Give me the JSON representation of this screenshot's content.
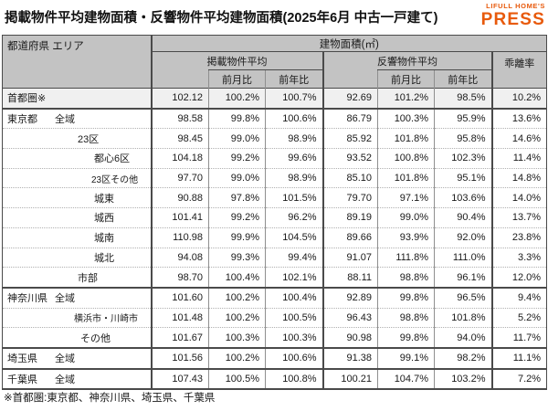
{
  "title": "掲載物件平均建物面積・反響物件平均建物面積(2025年6月 中古一戸建て)",
  "logo": {
    "line1": "LIFULL HOME'S",
    "line2": "PRESS",
    "color": "#E85A0C"
  },
  "footnote": "※首都圏:東京都、神奈川県、埼玉県、千葉県",
  "chart_data": {
    "type": "table",
    "title": "掲載物件平均建物面積・反響物件平均建物面積(2025年6月 中古一戸建て)",
    "headers": {
      "region": "都道府県 エリア",
      "unit_group": "建物面積(㎡)",
      "listed_group": "掲載物件平均",
      "inquiry_group": "反響物件平均",
      "divergence": "乖離率",
      "mom": "前月比",
      "yoy": "前年比"
    },
    "rows": [
      {
        "pref": "首都圏※",
        "area": "",
        "listed_avg": "102.12",
        "listed_mom": "100.2%",
        "listed_yoy": "100.7%",
        "inq_avg": "92.69",
        "inq_mom": "101.2%",
        "inq_yoy": "98.5%",
        "div": "10.2%"
      },
      {
        "pref": "東京都",
        "area": "全域",
        "listed_avg": "98.58",
        "listed_mom": "99.8%",
        "listed_yoy": "100.6%",
        "inq_avg": "86.79",
        "inq_mom": "100.3%",
        "inq_yoy": "95.9%",
        "div": "13.6%"
      },
      {
        "pref": "",
        "area": "23区",
        "listed_avg": "98.45",
        "listed_mom": "99.0%",
        "listed_yoy": "98.9%",
        "inq_avg": "85.92",
        "inq_mom": "101.8%",
        "inq_yoy": "95.8%",
        "div": "14.6%"
      },
      {
        "pref": "",
        "area": "都心6区",
        "listed_avg": "104.18",
        "listed_mom": "99.2%",
        "listed_yoy": "99.6%",
        "inq_avg": "93.52",
        "inq_mom": "100.8%",
        "inq_yoy": "102.3%",
        "div": "11.4%"
      },
      {
        "pref": "",
        "area": "23区その他",
        "listed_avg": "97.70",
        "listed_mom": "99.0%",
        "listed_yoy": "98.9%",
        "inq_avg": "85.10",
        "inq_mom": "101.8%",
        "inq_yoy": "95.1%",
        "div": "14.8%"
      },
      {
        "pref": "",
        "area": "城東",
        "listed_avg": "90.88",
        "listed_mom": "97.8%",
        "listed_yoy": "101.5%",
        "inq_avg": "79.70",
        "inq_mom": "97.1%",
        "inq_yoy": "103.6%",
        "div": "14.0%"
      },
      {
        "pref": "",
        "area": "城西",
        "listed_avg": "101.41",
        "listed_mom": "99.2%",
        "listed_yoy": "96.2%",
        "inq_avg": "89.19",
        "inq_mom": "99.0%",
        "inq_yoy": "90.4%",
        "div": "13.7%"
      },
      {
        "pref": "",
        "area": "城南",
        "listed_avg": "110.98",
        "listed_mom": "99.9%",
        "listed_yoy": "104.5%",
        "inq_avg": "89.66",
        "inq_mom": "93.9%",
        "inq_yoy": "92.0%",
        "div": "23.8%"
      },
      {
        "pref": "",
        "area": "城北",
        "listed_avg": "94.08",
        "listed_mom": "99.3%",
        "listed_yoy": "99.4%",
        "inq_avg": "91.07",
        "inq_mom": "111.8%",
        "inq_yoy": "111.0%",
        "div": "3.3%"
      },
      {
        "pref": "",
        "area": "市部",
        "listed_avg": "98.70",
        "listed_mom": "100.4%",
        "listed_yoy": "102.1%",
        "inq_avg": "88.11",
        "inq_mom": "98.8%",
        "inq_yoy": "96.1%",
        "div": "12.0%"
      },
      {
        "pref": "神奈川県",
        "area": "全域",
        "listed_avg": "101.60",
        "listed_mom": "100.2%",
        "listed_yoy": "100.4%",
        "inq_avg": "92.89",
        "inq_mom": "99.8%",
        "inq_yoy": "96.5%",
        "div": "9.4%"
      },
      {
        "pref": "",
        "area": "横浜市・川崎市",
        "listed_avg": "101.48",
        "listed_mom": "100.2%",
        "listed_yoy": "100.5%",
        "inq_avg": "96.43",
        "inq_mom": "98.8%",
        "inq_yoy": "101.8%",
        "div": "5.2%"
      },
      {
        "pref": "",
        "area": "その他",
        "listed_avg": "101.67",
        "listed_mom": "100.3%",
        "listed_yoy": "100.3%",
        "inq_avg": "90.98",
        "inq_mom": "99.8%",
        "inq_yoy": "94.0%",
        "div": "11.7%"
      },
      {
        "pref": "埼玉県",
        "area": "全域",
        "listed_avg": "101.56",
        "listed_mom": "100.2%",
        "listed_yoy": "100.6%",
        "inq_avg": "91.38",
        "inq_mom": "99.1%",
        "inq_yoy": "98.2%",
        "div": "11.1%"
      },
      {
        "pref": "千葉県",
        "area": "全域",
        "listed_avg": "107.43",
        "listed_mom": "100.5%",
        "listed_yoy": "100.8%",
        "inq_avg": "100.21",
        "inq_mom": "104.7%",
        "inq_yoy": "103.2%",
        "div": "7.2%"
      }
    ]
  }
}
